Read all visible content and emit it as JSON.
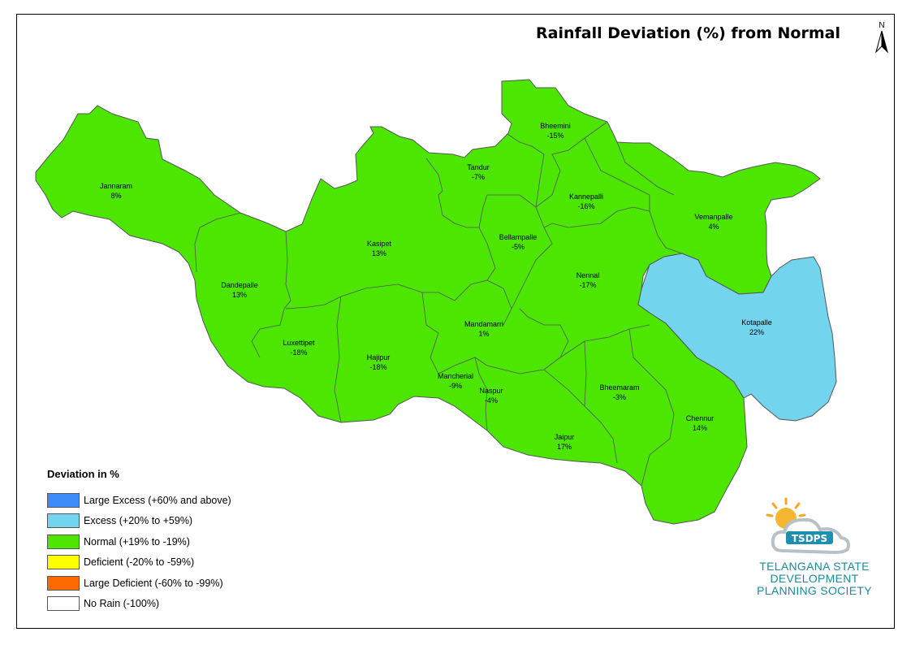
{
  "title": "Rainfall Deviation (%) from Normal",
  "north_label": "N",
  "colors": {
    "normal": "#4ce600",
    "excess": "#73d4ee",
    "border": "#555555"
  },
  "mandals": [
    {
      "name": "Bheemini",
      "value": "-15%",
      "category": "normal"
    },
    {
      "name": "Tandur",
      "value": "-7%",
      "category": "normal"
    },
    {
      "name": "Jannaram",
      "value": "8%",
      "category": "normal"
    },
    {
      "name": "Kannepalli",
      "value": "-16%",
      "category": "normal"
    },
    {
      "name": "Vemanpalle",
      "value": "4%",
      "category": "normal"
    },
    {
      "name": "Kasipet",
      "value": "13%",
      "category": "normal"
    },
    {
      "name": "Bellampalle",
      "value": "-5%",
      "category": "normal"
    },
    {
      "name": "Dandepalle",
      "value": "13%",
      "category": "normal"
    },
    {
      "name": "Nennal",
      "value": "-17%",
      "category": "normal"
    },
    {
      "name": "Kotapalle",
      "value": "22%",
      "category": "excess"
    },
    {
      "name": "Mandamarri",
      "value": "1%",
      "category": "normal"
    },
    {
      "name": "Luxettipet",
      "value": "-18%",
      "category": "normal"
    },
    {
      "name": "Hajipur",
      "value": "-18%",
      "category": "normal"
    },
    {
      "name": "Mancherial",
      "value": "-9%",
      "category": "normal"
    },
    {
      "name": "Naspur",
      "value": "-4%",
      "category": "normal"
    },
    {
      "name": "Bheemaram",
      "value": "-3%",
      "category": "normal"
    },
    {
      "name": "Chennur",
      "value": "14%",
      "category": "normal"
    },
    {
      "name": "Jaipur",
      "value": "17%",
      "category": "normal"
    }
  ],
  "legend": {
    "title": "Deviation in %",
    "items": [
      {
        "label": "Large Excess (+60% and above)",
        "color": "#3e8cf7"
      },
      {
        "label": "Excess (+20% to +59%)",
        "color": "#73d4ee"
      },
      {
        "label": "Normal (+19% to -19%)",
        "color": "#4ce600"
      },
      {
        "label": "Deficient (-20% to -59%)",
        "color": "#ffff00"
      },
      {
        "label": "Large Deficient (-60% to -99%)",
        "color": "#ff6a00"
      },
      {
        "label": "No Rain (-100%)",
        "color": "#ffffff"
      }
    ]
  },
  "logo": {
    "badge": "TSDPS",
    "line1": "TELANGANA STATE",
    "line2": "DEVELOPMENT",
    "line3": "PLANNING SOCIETY"
  }
}
